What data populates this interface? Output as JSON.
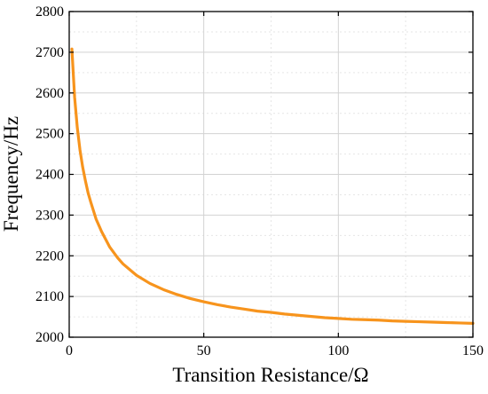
{
  "chart_data": {
    "type": "line",
    "xlabel": "Transition Resistance/Ω",
    "ylabel": "Frequency/Hz",
    "xlim": [
      0,
      150
    ],
    "ylim": [
      2000,
      2800
    ],
    "x_ticks": [
      0,
      50,
      100,
      150
    ],
    "y_ticks": [
      2000,
      2100,
      2200,
      2300,
      2400,
      2500,
      2600,
      2700,
      2800
    ],
    "grid": true,
    "series": [
      {
        "color": "#f7941d",
        "x": [
          1,
          2,
          3,
          4,
          5,
          6,
          7,
          8,
          10,
          12,
          15,
          18,
          20,
          25,
          30,
          35,
          40,
          45,
          50,
          55,
          60,
          65,
          70,
          75,
          80,
          85,
          90,
          95,
          100,
          105,
          110,
          115,
          120,
          125,
          130,
          135,
          140,
          145,
          150
        ],
        "y": [
          2708,
          2590,
          2515,
          2460,
          2418,
          2385,
          2355,
          2332,
          2290,
          2260,
          2222,
          2195,
          2180,
          2152,
          2132,
          2117,
          2105,
          2095,
          2087,
          2080,
          2074,
          2069,
          2064,
          2061,
          2057,
          2054,
          2051,
          2048,
          2046,
          2044,
          2043,
          2042,
          2040,
          2039,
          2038,
          2037,
          2036,
          2035,
          2034
        ]
      }
    ]
  }
}
